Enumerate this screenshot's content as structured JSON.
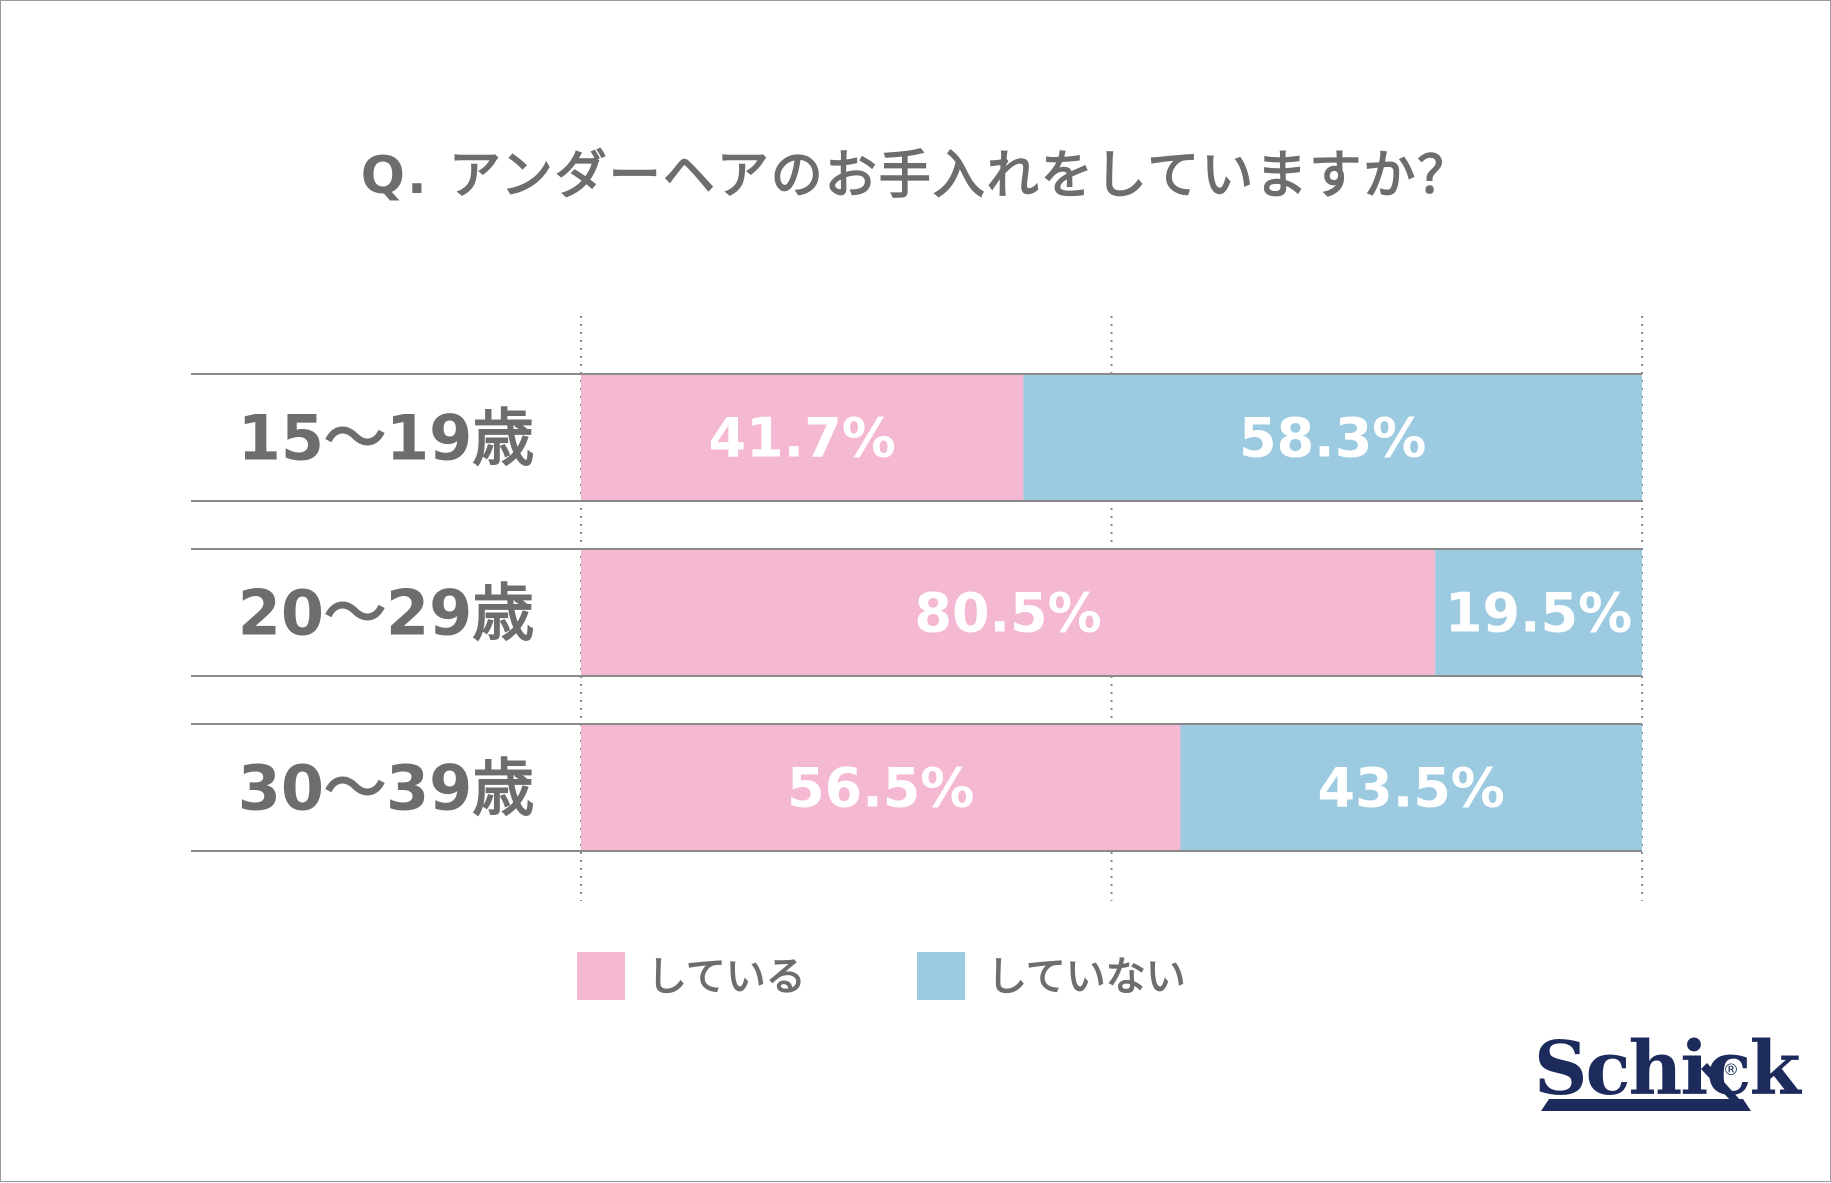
{
  "chart_data": {
    "type": "bar",
    "orientation": "horizontal",
    "stacked": true,
    "title": "Q. アンダーヘアのお手入れをしていますか？",
    "categories": [
      "15～19歳",
      "20～29歳",
      "30～39歳"
    ],
    "series": [
      {
        "name": "している",
        "color": "#f4b8d2",
        "values": [
          41.7,
          80.5,
          56.5
        ],
        "labels": [
          "41.7%",
          "80.5%",
          "56.5%"
        ]
      },
      {
        "name": "していない",
        "color": "#9ccbe1",
        "values": [
          58.3,
          19.5,
          43.5
        ],
        "labels": [
          "58.3%",
          "19.5%",
          "43.5%"
        ]
      }
    ],
    "xlim": [
      0,
      100
    ],
    "gridlines": [
      0,
      50,
      100
    ],
    "grid": true,
    "grid_style": "dotted",
    "legend_position": "bottom"
  },
  "brand": {
    "logo_text": "Schick",
    "logo_mark": "®",
    "logo_color": "#1d2b5c"
  },
  "colors": {
    "text": "#6d6d6d",
    "rule": "#8a8a8a"
  }
}
